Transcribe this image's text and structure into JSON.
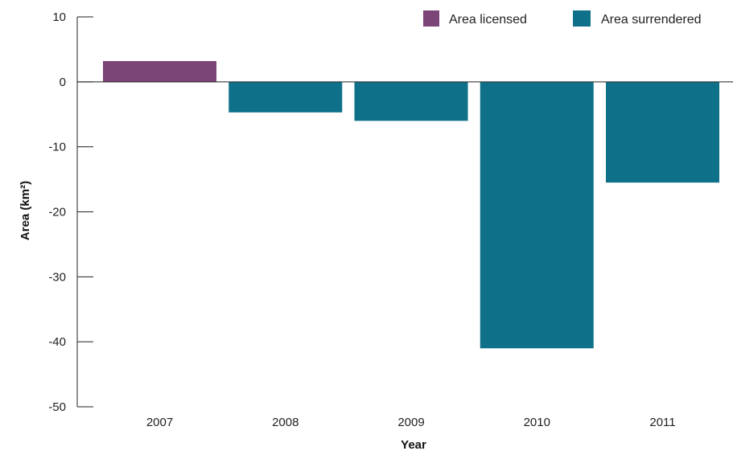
{
  "chart_data": {
    "type": "bar",
    "categories": [
      "2007",
      "2008",
      "2009",
      "2010",
      "2011"
    ],
    "series": [
      {
        "name": "Area licensed",
        "color": "#7b4577",
        "values": [
          3.2,
          null,
          null,
          null,
          null
        ]
      },
      {
        "name": "Area surrendered",
        "color": "#0f7189",
        "values": [
          null,
          -4.7,
          -6.0,
          -41.0,
          -15.5
        ]
      }
    ],
    "xlabel": "Year",
    "ylabel": "Area (km²)",
    "ylim": [
      -50,
      10
    ],
    "yticks": [
      "10",
      "0",
      "-10",
      "-20",
      "-30",
      "-40",
      "-50"
    ],
    "grid": false,
    "legend_position": "top-right"
  }
}
